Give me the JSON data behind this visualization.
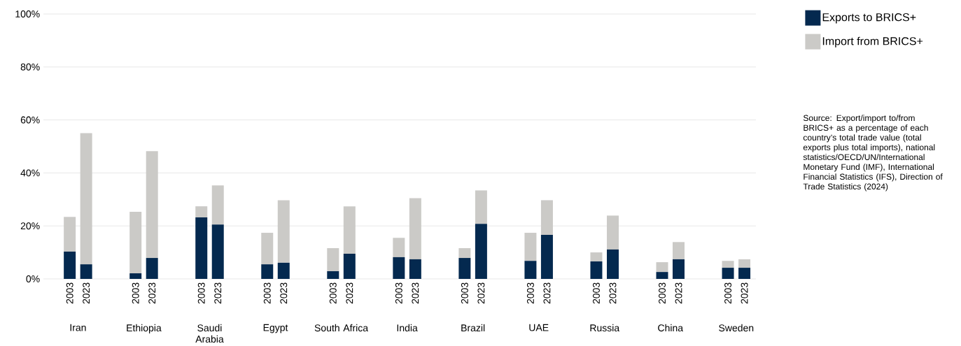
{
  "chart_data": {
    "type": "bar",
    "stacked": true,
    "categories": [
      "2003",
      "2023",
      null,
      null,
      "2003",
      "2023",
      null,
      null,
      "2003",
      "2023",
      null,
      null,
      "2003",
      "2023",
      null,
      null,
      "2003",
      "2023",
      null,
      null,
      "2003",
      "2023",
      null,
      null,
      "2003",
      "2023",
      null,
      null,
      "2003",
      "2023",
      null,
      null,
      "2003",
      "2023",
      null,
      null,
      "2003",
      "2023",
      null,
      null,
      "2003",
      "2023"
    ],
    "series": [
      {
        "name": "Exports to BRICS+",
        "color": "#04294f",
        "values": [
          10.3,
          5.5,
          null,
          null,
          2.1,
          7.9,
          null,
          null,
          23.2,
          20.5,
          null,
          null,
          5.5,
          6.1,
          null,
          null,
          2.9,
          9.5,
          null,
          null,
          8.2,
          7.4,
          null,
          null,
          7.9,
          20.8,
          null,
          null,
          6.8,
          16.6,
          null,
          null,
          6.6,
          11.1,
          null,
          null,
          2.6,
          7.4,
          null,
          null,
          4.2,
          4.2
        ]
      },
      {
        "name": "Import from BRICS+",
        "color": "#cbcac7",
        "values": [
          13.1,
          49.5,
          null,
          null,
          23.2,
          40.3,
          null,
          null,
          4.2,
          14.8,
          null,
          null,
          11.9,
          23.6,
          null,
          null,
          8.7,
          17.9,
          null,
          null,
          7.3,
          23.1,
          null,
          null,
          3.7,
          12.6,
          null,
          null,
          10.6,
          13.1,
          null,
          null,
          3.4,
          12.8,
          null,
          null,
          3.7,
          6.5,
          null,
          null,
          2.6,
          3.2
        ]
      }
    ],
    "ylim": [
      0,
      100
    ],
    "yticks": [
      {
        "value": 0,
        "label": "0%"
      },
      {
        "value": 20,
        "label": "20%"
      },
      {
        "value": 40,
        "label": "40%"
      },
      {
        "value": 60,
        "label": "60%"
      },
      {
        "value": 80,
        "label": "80%"
      },
      {
        "value": 100,
        "label": "100%"
      }
    ],
    "grid": "y",
    "legend": "top right",
    "annotations": [
      "Iran",
      "Ethiopia",
      "Saudi Arabia",
      "Egypt",
      "South Africa",
      "India",
      "Brazil",
      "UAE",
      "Russia",
      "China",
      "Sweden",
      "Source: Export/import to/from BRICS+ as a percentage of each country’s total trade value (total exports plus total imports), national statistics/OECD/UN/International Monetary Fund (IMF), International Financial Statistics (IFS), Direction of Trade Statistics (2024)"
    ]
  }
}
